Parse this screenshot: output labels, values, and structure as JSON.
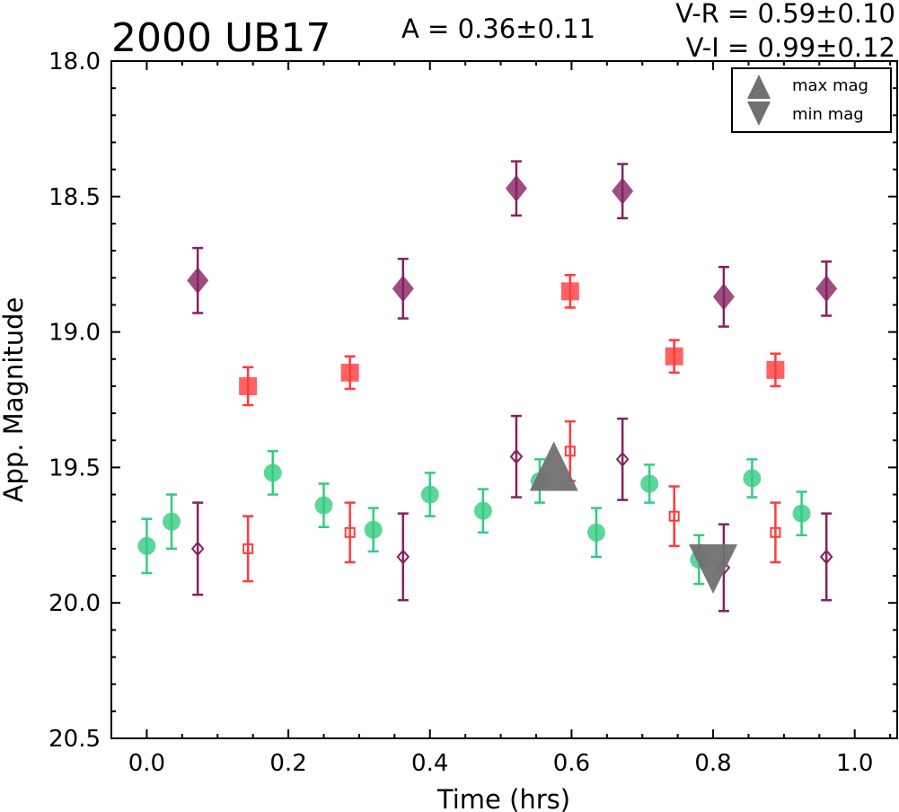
{
  "chart_data": {
    "type": "scatter",
    "title": "2000 UB17",
    "amplitude_text": "A  = 0.36±0.11",
    "color_lines": [
      "V-R = 0.59±0.10",
      "V-I  = 0.99±0.12"
    ],
    "xlabel": "Time (hrs)",
    "ylabel": "App. Magnitude",
    "xlim": [
      -0.05,
      1.06
    ],
    "ylim": [
      18.0,
      20.5
    ],
    "y_inverted": true,
    "x_ticks": [
      "0.0",
      "0.2",
      "0.4",
      "0.6",
      "0.8",
      "1.0"
    ],
    "y_ticks": [
      "18.0",
      "18.5",
      "19.0",
      "19.5",
      "20.0",
      "20.5"
    ],
    "legend": {
      "placement": "top-right",
      "entries": [
        {
          "label": "max mag",
          "marker": "triangle-up"
        },
        {
          "label": "min mag",
          "marker": "triangle-down"
        }
      ]
    },
    "series": [
      {
        "marker": "circle",
        "fill": "filled",
        "color": "#33cc80",
        "points": [
          {
            "x": 0.0,
            "y": 19.79,
            "err": 0.1
          },
          {
            "x": 0.035,
            "y": 19.7,
            "err": 0.1
          },
          {
            "x": 0.178,
            "y": 19.52,
            "err": 0.08
          },
          {
            "x": 0.25,
            "y": 19.64,
            "err": 0.08
          },
          {
            "x": 0.32,
            "y": 19.73,
            "err": 0.08
          },
          {
            "x": 0.4,
            "y": 19.6,
            "err": 0.08
          },
          {
            "x": 0.475,
            "y": 19.66,
            "err": 0.08
          },
          {
            "x": 0.555,
            "y": 19.55,
            "err": 0.08
          },
          {
            "x": 0.635,
            "y": 19.74,
            "err": 0.09
          },
          {
            "x": 0.71,
            "y": 19.56,
            "err": 0.07
          },
          {
            "x": 0.78,
            "y": 19.84,
            "err": 0.09
          },
          {
            "x": 0.855,
            "y": 19.54,
            "err": 0.07
          },
          {
            "x": 0.925,
            "y": 19.67,
            "err": 0.08
          }
        ]
      },
      {
        "marker": "square",
        "fill": "filled",
        "color": "#ff3b3b",
        "points": [
          {
            "x": 0.143,
            "y": 19.2,
            "err": 0.07
          },
          {
            "x": 0.287,
            "y": 19.15,
            "err": 0.06
          },
          {
            "x": 0.598,
            "y": 18.85,
            "err": 0.06
          },
          {
            "x": 0.745,
            "y": 19.09,
            "err": 0.06
          },
          {
            "x": 0.888,
            "y": 19.14,
            "err": 0.06
          }
        ]
      },
      {
        "marker": "square",
        "fill": "open",
        "color": "#ff3b3b",
        "points": [
          {
            "x": 0.143,
            "y": 19.8,
            "err": 0.12
          },
          {
            "x": 0.287,
            "y": 19.74,
            "err": 0.11
          },
          {
            "x": 0.598,
            "y": 19.44,
            "err": 0.11
          },
          {
            "x": 0.745,
            "y": 19.68,
            "err": 0.11
          },
          {
            "x": 0.888,
            "y": 19.74,
            "err": 0.11
          }
        ]
      },
      {
        "marker": "diamond",
        "fill": "filled",
        "color": "#862060",
        "points": [
          {
            "x": 0.072,
            "y": 18.81,
            "err": 0.12
          },
          {
            "x": 0.362,
            "y": 18.84,
            "err": 0.11
          },
          {
            "x": 0.522,
            "y": 18.47,
            "err": 0.1
          },
          {
            "x": 0.672,
            "y": 18.48,
            "err": 0.1
          },
          {
            "x": 0.815,
            "y": 18.87,
            "err": 0.11
          },
          {
            "x": 0.96,
            "y": 18.84,
            "err": 0.1
          }
        ]
      },
      {
        "marker": "diamond",
        "fill": "open",
        "color": "#862060",
        "points": [
          {
            "x": 0.072,
            "y": 19.8,
            "err": 0.17
          },
          {
            "x": 0.362,
            "y": 19.83,
            "err": 0.16
          },
          {
            "x": 0.522,
            "y": 19.46,
            "err": 0.15
          },
          {
            "x": 0.672,
            "y": 19.47,
            "err": 0.15
          },
          {
            "x": 0.815,
            "y": 19.87,
            "err": 0.16
          },
          {
            "x": 0.96,
            "y": 19.83,
            "err": 0.16
          }
        ]
      }
    ],
    "extrema": [
      {
        "label": "max mag",
        "marker": "triangle-up",
        "x": 0.575,
        "y": 19.53,
        "color": "#707070"
      },
      {
        "label": "min mag",
        "marker": "triangle-down",
        "x": 0.8,
        "y": 19.84,
        "color": "#707070"
      }
    ]
  }
}
